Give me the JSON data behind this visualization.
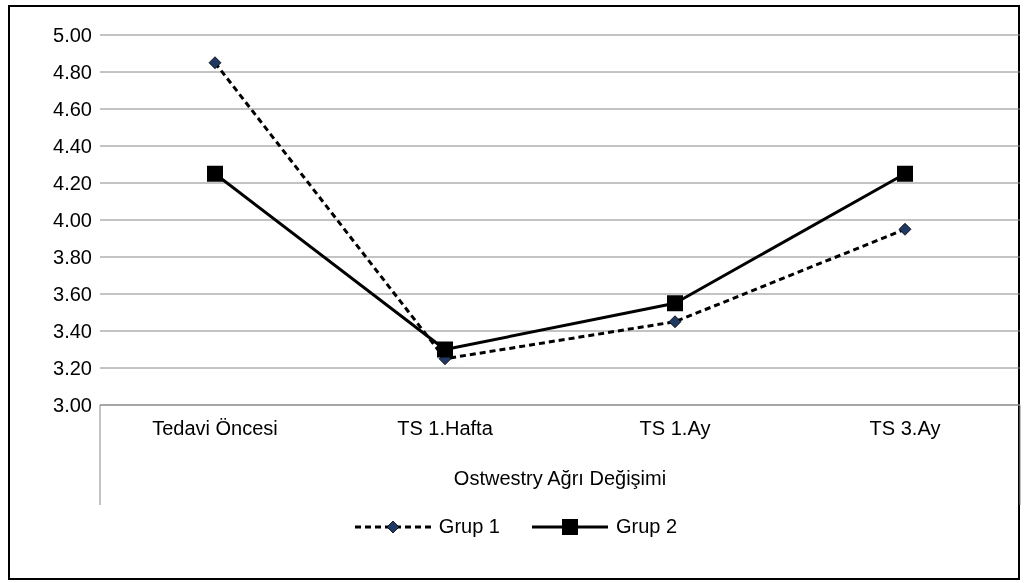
{
  "chart_data": {
    "type": "line",
    "xlabel": "Ostwestry Ağrı Değişimi",
    "categories": [
      "Tedavi Öncesi",
      "TS 1.Hafta",
      "TS 1.Ay",
      "TS 3.Ay"
    ],
    "series": [
      {
        "name": "Grup 1",
        "color": "#000000",
        "values": [
          4.85,
          3.25,
          3.45,
          3.95
        ],
        "marker": "diamond",
        "line_style": "dashed"
      },
      {
        "name": "Grup 2",
        "color": "#000000",
        "values": [
          4.25,
          3.3,
          3.55,
          4.25
        ],
        "marker": "square",
        "line_style": "solid"
      }
    ],
    "ylim": [
      3,
      5
    ],
    "yticks": [
      {
        "value": 3,
        "label": "3.00"
      },
      {
        "value": 3.2,
        "label": "3.20"
      },
      {
        "value": 3.4,
        "label": "3.40"
      },
      {
        "value": 3.6,
        "label": "3.60"
      },
      {
        "value": 3.8,
        "label": "3.80"
      },
      {
        "value": 4,
        "label": "4.00"
      },
      {
        "value": 4.2,
        "label": "4.20"
      },
      {
        "value": 4.4,
        "label": "4.40"
      },
      {
        "value": 4.6,
        "label": "4.60"
      },
      {
        "value": 4.8,
        "label": "4.80"
      },
      {
        "value": 5,
        "label": "5.00"
      }
    ],
    "grid": "y",
    "legend": "bottom"
  }
}
